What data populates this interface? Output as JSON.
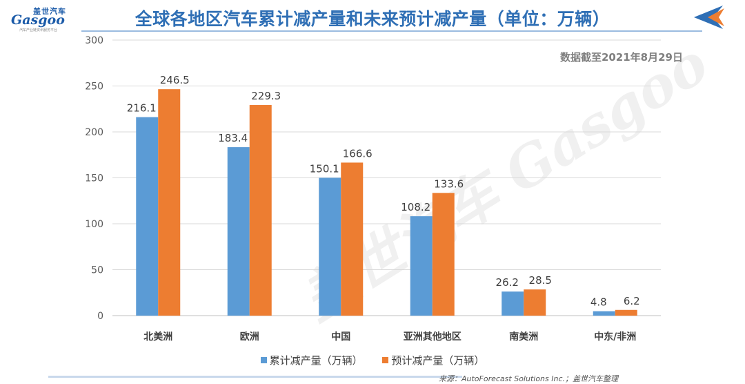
{
  "logo": {
    "cn": "盖世汽车",
    "en": "Gasgoo",
    "sub": "汽车产业链资讯服务平台"
  },
  "title": "全球各地区汽车累计减产量和未来预计减产量（单位：万辆）",
  "date_note": "数据截至2021年8月29日",
  "watermark": "盖世汽车 Gasgoo",
  "source": "来源：AutoForecast Solutions Inc.；盖世汽车整理",
  "colors": {
    "series1": "#5b9bd5",
    "series2": "#ed7d31",
    "title": "#2f6fb5"
  },
  "chart_data": {
    "type": "bar",
    "categories": [
      "北美洲",
      "欧洲",
      "中国",
      "亚洲其他地区",
      "南美洲",
      "中东/非洲"
    ],
    "series": [
      {
        "name": "累计减产量（万辆）",
        "values": [
          216.1,
          183.4,
          150.1,
          108.2,
          26.2,
          4.8
        ]
      },
      {
        "name": "预计减产量（万辆）",
        "values": [
          246.5,
          229.3,
          166.6,
          133.6,
          28.5,
          6.2
        ]
      }
    ],
    "ylim": [
      0,
      300
    ],
    "yticks": [
      0,
      50,
      100,
      150,
      200,
      250,
      300
    ],
    "grid": true,
    "legend": "bottom"
  }
}
